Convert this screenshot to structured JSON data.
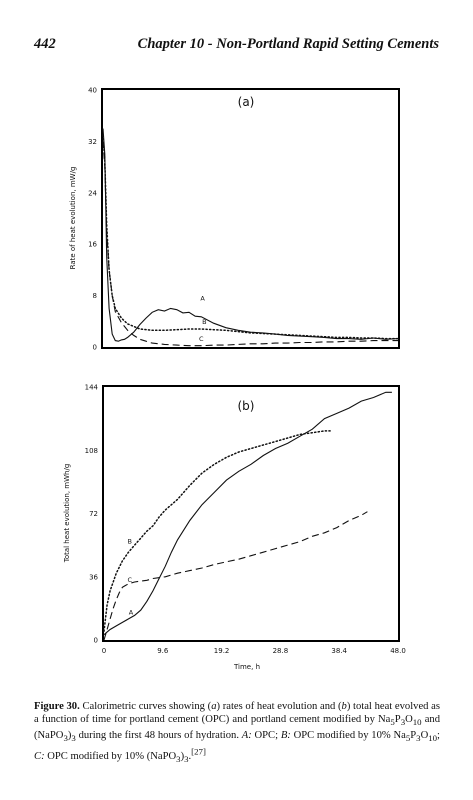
{
  "header": {
    "page_number": "442",
    "chapter_title": "Chapter 10 - Non-Portland Rapid Setting Cements"
  },
  "chart_data": [
    {
      "type": "line",
      "panel_label": "(a)",
      "ylabel": "Rate of heat evolution, mW/g",
      "ylim": [
        0,
        40
      ],
      "yticks": [
        "0",
        "8",
        "16",
        "24",
        "32",
        "40"
      ],
      "xlim": [
        0,
        48
      ],
      "series": [
        {
          "name": "A",
          "style": "solid",
          "x": [
            0,
            0.3,
            0.6,
            1,
            1.5,
            2,
            2.5,
            3,
            3.5,
            4,
            5,
            6,
            7,
            8,
            9,
            10,
            11,
            12,
            13,
            14,
            15,
            16,
            18,
            20,
            22,
            24,
            26,
            28,
            30,
            32,
            34,
            36,
            38,
            40,
            42,
            44,
            46,
            48
          ],
          "y": [
            34,
            30,
            14,
            6,
            2,
            1,
            0.9,
            1.1,
            1.2,
            1.5,
            2.3,
            3.5,
            4.5,
            5.4,
            5.8,
            5.6,
            6,
            5.8,
            5.3,
            5.4,
            4.8,
            4.7,
            3.7,
            3,
            2.6,
            2.3,
            2.2,
            2,
            1.8,
            1.7,
            1.6,
            1.5,
            1.3,
            1.3,
            1.2,
            1.4,
            1.2,
            1.3
          ]
        },
        {
          "name": "B",
          "style": "dotted",
          "x": [
            0,
            0.3,
            0.6,
            1,
            1.5,
            2,
            3,
            4,
            5,
            6,
            8,
            10,
            12,
            14,
            16,
            18,
            20,
            22,
            24,
            26,
            28,
            30,
            32,
            34,
            36,
            38,
            40,
            42,
            44,
            46,
            48
          ],
          "y": [
            33,
            29,
            19,
            12,
            8,
            6,
            4.5,
            3.6,
            3.2,
            2.8,
            2.6,
            2.6,
            2.7,
            2.8,
            2.8,
            2.7,
            2.6,
            2.4,
            2.2,
            2.1,
            2,
            1.9,
            1.8,
            1.7,
            1.6,
            1.5,
            1.5,
            1.4,
            1.4,
            1.3,
            1.3
          ]
        },
        {
          "name": "C",
          "style": "dashed",
          "x": [
            0,
            0.3,
            0.6,
            1,
            1.5,
            2,
            3,
            4,
            5,
            6,
            7,
            8,
            10,
            12,
            14,
            16,
            18,
            20,
            22,
            24,
            26,
            28,
            30,
            32,
            34,
            36,
            38,
            40,
            42,
            44,
            46,
            48
          ],
          "y": [
            32,
            28,
            18,
            12,
            8,
            5.5,
            3.8,
            2.6,
            1.8,
            1.2,
            0.9,
            0.6,
            0.4,
            0.3,
            0.2,
            0.2,
            0.3,
            0.3,
            0.4,
            0.5,
            0.5,
            0.6,
            0.6,
            0.7,
            0.7,
            0.8,
            0.8,
            0.9,
            0.9,
            1,
            1,
            1
          ]
        }
      ],
      "curve_labels": [
        {
          "text": "A",
          "x": 16.2,
          "y": 7.2
        },
        {
          "text": "B",
          "x": 16.5,
          "y": 3.6
        },
        {
          "text": "C",
          "x": 16.0,
          "y": 0.9
        }
      ]
    },
    {
      "type": "line",
      "panel_label": "(b)",
      "xlabel": "Time, h",
      "ylabel": "Total heat evolution, mWh/g",
      "ylim": [
        0,
        144
      ],
      "yticks": [
        "0",
        "36",
        "72",
        "108",
        "144"
      ],
      "xlim": [
        0,
        48
      ],
      "xticks": [
        "0",
        "9.6",
        "19.2",
        "28.8",
        "38.4",
        "48.0"
      ],
      "series": [
        {
          "name": "A",
          "style": "solid",
          "x": [
            0,
            1,
            2,
            3,
            4,
            5,
            6,
            7,
            8,
            9,
            10,
            11,
            12,
            14,
            16,
            18,
            20,
            22,
            24,
            26,
            28,
            30,
            32,
            34,
            36,
            38,
            40,
            42,
            44,
            46,
            47
          ],
          "y": [
            3,
            6,
            8,
            10,
            12,
            14,
            17,
            22,
            28,
            35,
            42,
            50,
            57,
            68,
            77,
            84,
            91,
            96,
            100,
            105,
            109,
            112,
            116,
            120,
            126,
            129,
            132,
            136,
            138,
            141,
            141
          ]
        },
        {
          "name": "B",
          "style": "dotted",
          "x": [
            0,
            0.5,
            1,
            2,
            3,
            4,
            5,
            6,
            7,
            8,
            9,
            10,
            12,
            14,
            16,
            18,
            20,
            22,
            24,
            26,
            28,
            30,
            32,
            34,
            36,
            37
          ],
          "y": [
            5,
            20,
            28,
            38,
            45,
            50,
            54,
            58,
            62,
            65,
            70,
            74,
            80,
            88,
            95,
            100,
            104,
            107,
            109,
            111,
            113,
            115,
            117,
            118,
            119,
            119
          ]
        },
        {
          "name": "C",
          "style": "dashed",
          "x": [
            0,
            0.5,
            1,
            1.5,
            2,
            2.5,
            3,
            3.5,
            4,
            5,
            6,
            7,
            8,
            10,
            12,
            14,
            16,
            18,
            20,
            22,
            24,
            26,
            28,
            30,
            32,
            34,
            36,
            38,
            40,
            42,
            43
          ],
          "y": [
            0,
            6,
            12,
            18,
            23,
            27,
            30,
            31,
            32,
            33,
            33.5,
            34,
            35,
            36,
            38,
            39.5,
            41,
            43,
            44.5,
            46,
            48,
            50,
            52,
            54,
            56,
            59,
            61,
            64,
            68,
            71,
            73
          ]
        }
      ],
      "curve_labels": [
        {
          "text": "B",
          "x": 4.2,
          "y": 55
        },
        {
          "text": "C",
          "x": 4.2,
          "y": 33
        },
        {
          "text": "A",
          "x": 4.4,
          "y": 14.5
        }
      ]
    }
  ],
  "caption": {
    "label": "Figure 30.",
    "html": " Calorimetric curves showing (<i>a</i>) rates of heat evolution and (<i>b</i>) total heat evolved as a function of time for portland cement (OPC) and portland cement modified by Na<sub>5</sub>P<sub>3</sub>O<sub>10</sub> and (NaPO<sub>3</sub>)<sub>3</sub> during the first 48 hours of hydration. <i>A:</i> OPC; <i>B:</i> OPC modified by 10% Na<sub>5</sub>P<sub>3</sub>O<sub>10</sub>; <i>C:</i> OPC modified by 10% (NaPO<sub>3</sub>)<sub>3</sub>.<sup>[27]</sup>"
  }
}
